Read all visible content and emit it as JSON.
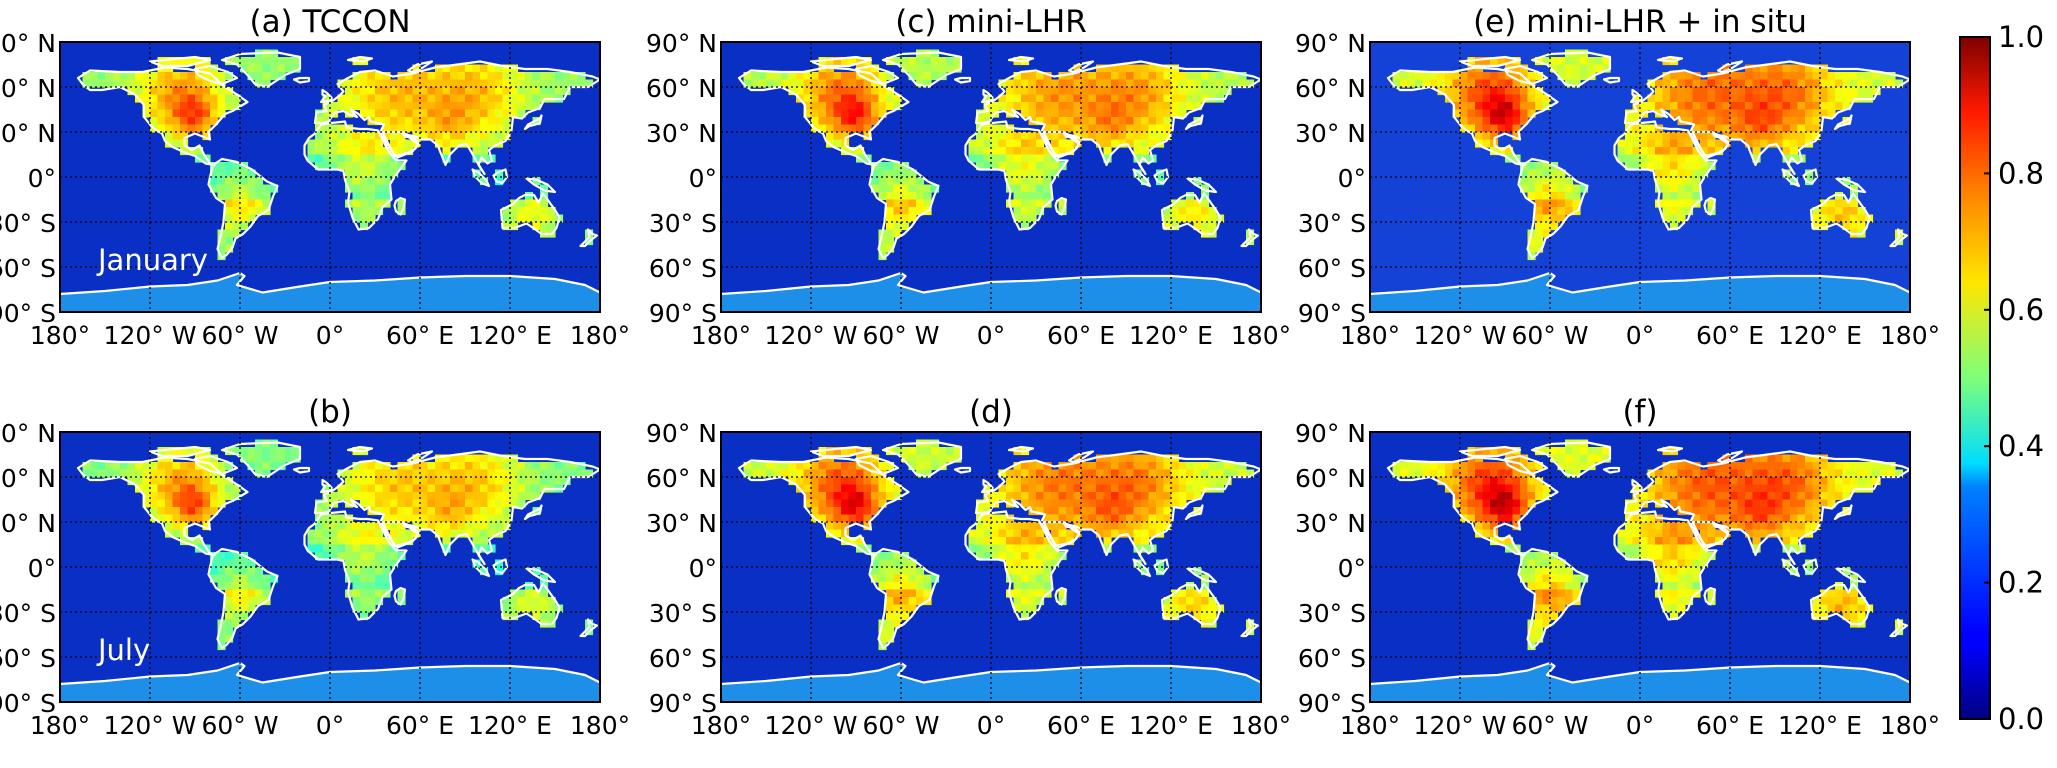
{
  "panels": [
    {
      "id": "a",
      "title": "(a) TCCON",
      "month": "January",
      "row": 0,
      "col": 0,
      "ocean": "#0a2fc4",
      "land_bias": 0.52,
      "land_hot": 0.66
    },
    {
      "id": "c",
      "title": "(c)  mini-LHR",
      "month": "",
      "row": 0,
      "col": 1,
      "ocean": "#0a2fc4",
      "land_bias": 0.55,
      "land_hot": 0.68
    },
    {
      "id": "e",
      "title": "(e) mini-LHR + in situ",
      "month": "",
      "row": 0,
      "col": 2,
      "ocean": "#1542d6",
      "land_bias": 0.58,
      "land_hot": 0.74
    },
    {
      "id": "b",
      "title": "(b)",
      "month": "July",
      "row": 1,
      "col": 0,
      "ocean": "#0a2fc4",
      "land_bias": 0.5,
      "land_hot": 0.68
    },
    {
      "id": "d",
      "title": "(d)",
      "month": "",
      "row": 1,
      "col": 1,
      "ocean": "#0a2fc4",
      "land_bias": 0.57,
      "land_hot": 0.72
    },
    {
      "id": "f",
      "title": "(f)",
      "month": "",
      "row": 1,
      "col": 2,
      "ocean": "#0a2fc4",
      "land_bias": 0.59,
      "land_hot": 0.76
    }
  ],
  "lat_labels": [
    "90° N",
    "60° N",
    "30° N",
    "0°",
    "30° S",
    "60° S",
    "90° S"
  ],
  "lon_labels": [
    "180°",
    "120° W",
    "60° W",
    "0°",
    "60° E",
    "120° E",
    "180°"
  ],
  "colorbar": {
    "min": 0.0,
    "max": 1.0,
    "tick_labels": [
      "1.0",
      "0.8",
      "0.6",
      "0.4",
      "0.2",
      "0.0"
    ],
    "colormap": "jet"
  },
  "colors": {
    "coastline": "#ffffff",
    "antarctica": "#1e8fe8",
    "grid": "#000000"
  }
}
